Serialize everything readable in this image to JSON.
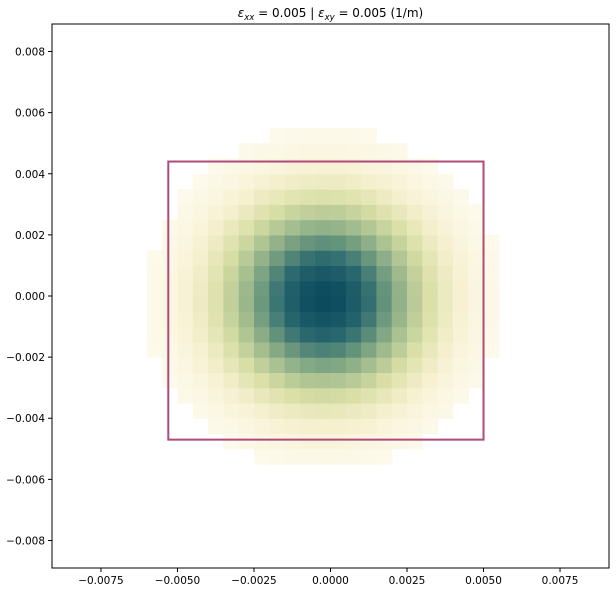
{
  "chart_data": {
    "type": "heatmap",
    "title": "εxx =  0.005 | εxy =  0.005 (1/m)",
    "title_parts": {
      "sym1": "ε",
      "sub1": "xx",
      "val1": " =  0.005 | ",
      "sym2": "ε",
      "sub2": "xy",
      "val2": " =  0.005 (1/m)"
    },
    "xlabel": "",
    "ylabel": "",
    "xlim": [
      -0.0091,
      0.0091
    ],
    "ylim": [
      -0.0089,
      0.0089
    ],
    "x_ticks": [
      -0.0075,
      -0.005,
      -0.0025,
      0.0,
      0.0025,
      0.005,
      0.0075
    ],
    "x_tick_labels": [
      "−0.0075",
      "−0.0050",
      "−0.0025",
      "0.0000",
      "0.0025",
      "0.0050",
      "0.0075"
    ],
    "y_ticks": [
      0.008,
      0.006,
      0.004,
      0.002,
      0.0,
      -0.002,
      -0.004,
      -0.006,
      -0.008
    ],
    "y_tick_labels": [
      "0.008",
      "0.006",
      "0.004",
      "0.002",
      "0.000",
      "−0.002",
      "−0.004",
      "−0.006",
      "−0.008"
    ],
    "grid": false,
    "heatmap": {
      "center": [
        -0.0002,
        -0.0001
      ],
      "sigma_x": 0.0023,
      "sigma_y": 0.0022,
      "cell_size": 0.0005,
      "colormap": [
        "#fffdf5",
        "#f6f0cf",
        "#d9dfa6",
        "#a8c090",
        "#6e9a7e",
        "#2d6b70",
        "#0b4a5e"
      ]
    },
    "rectangle": {
      "x0": -0.0053,
      "x1": 0.005,
      "y0": -0.0047,
      "y1": 0.0044,
      "color": "#b04a78"
    }
  }
}
